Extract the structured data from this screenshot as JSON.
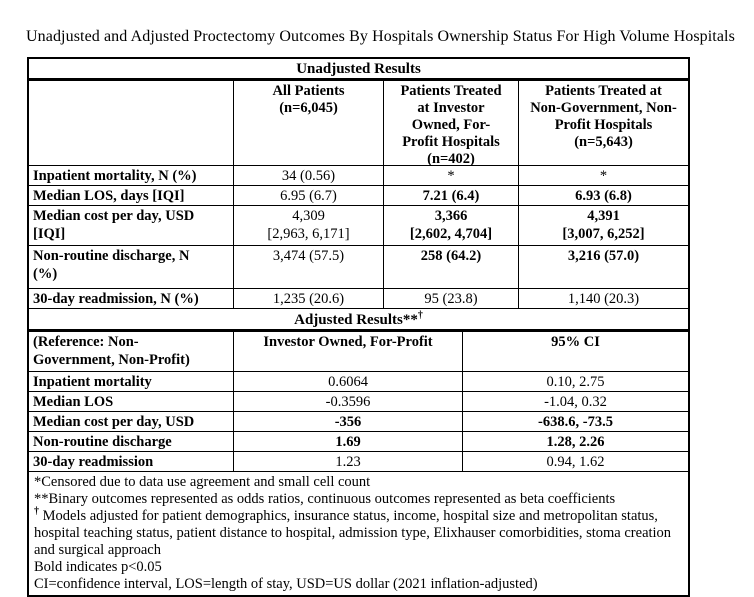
{
  "page": {
    "title": "Unadjusted and Adjusted Proctectomy Outcomes By Hospitals Ownership Status For High Volume Hospitals"
  },
  "colors": {
    "text": "#000000",
    "border": "#000000",
    "background": "#ffffff"
  },
  "table": {
    "unadjusted": {
      "section_title": "Unadjusted Results",
      "columns": [
        "",
        "All Patients\n(n=6,045)",
        "Patients Treated\nat Investor\nOwned, For-\nProfit Hospitals\n(n=402)",
        "Patients Treated at\nNon-Government, Non-\nProfit Hospitals\n(n=5,643)"
      ],
      "rows": [
        {
          "label": "Inpatient mortality, N (%)",
          "values": [
            "34 (0.56)",
            "*",
            "*"
          ],
          "bold": [
            false,
            false,
            false
          ]
        },
        {
          "label": "Median LOS, days [IQI]",
          "values": [
            "6.95 (6.7)",
            "7.21 (6.4)",
            "6.93 (6.8)"
          ],
          "bold": [
            false,
            true,
            true
          ]
        },
        {
          "label": "Median cost per day, USD\n[IQI]",
          "values": [
            "4,309\n[2,963, 6,171]",
            "3,366\n[2,602, 4,704]",
            "4,391\n[3,007, 6,252]"
          ],
          "bold": [
            false,
            true,
            true
          ]
        },
        {
          "label": "Non-routine discharge, N\n(%)",
          "values": [
            "3,474 (57.5)",
            "258 (64.2)",
            "3,216 (57.0)"
          ],
          "bold": [
            false,
            true,
            true
          ]
        },
        {
          "label": "30-day readmission, N (%)",
          "values": [
            "1,235 (20.6)",
            "95 (23.8)",
            "1,140 (20.3)"
          ],
          "bold": [
            false,
            false,
            false
          ]
        }
      ]
    },
    "adjusted": {
      "section_title": "Adjusted Results**",
      "section_title_sup": "†",
      "columns": [
        "(Reference: Non-\nGovernment, Non-Profit)",
        "Investor Owned, For-Profit",
        "95% CI"
      ],
      "rows": [
        {
          "label": "Inpatient mortality",
          "values": [
            "0.6064",
            "0.10, 2.75"
          ],
          "bold": [
            false,
            false
          ]
        },
        {
          "label": "Median LOS",
          "values": [
            "-0.3596",
            "-1.04, 0.32"
          ],
          "bold": [
            false,
            false
          ]
        },
        {
          "label": "Median cost per day, USD",
          "values": [
            "-356",
            "-638.6, -73.5"
          ],
          "bold": [
            true,
            true
          ]
        },
        {
          "label": "Non-routine discharge",
          "values": [
            "1.69",
            "1.28, 2.26"
          ],
          "bold": [
            true,
            true
          ]
        },
        {
          "label": "30-day readmission",
          "values": [
            "1.23",
            "0.94, 1.62"
          ],
          "bold": [
            false,
            false
          ]
        }
      ]
    },
    "footnotes": [
      {
        "sup": "",
        "text": "*Censored due to data use agreement and small cell count"
      },
      {
        "sup": "",
        "text": "**Binary outcomes represented as odds ratios, continuous outcomes represented as beta coefficients"
      },
      {
        "sup": "†",
        "text": " Models adjusted for patient demographics, insurance status, income, hospital size and metropolitan status, hospital teaching status, patient distance to hospital, admission type, Elixhauser comorbidities, stoma creation and surgical approach"
      },
      {
        "sup": "",
        "text": "Bold indicates p<0.05"
      },
      {
        "sup": "",
        "text": "CI=confidence interval, LOS=length of stay, USD=US dollar (2021 inflation-adjusted)"
      }
    ]
  }
}
